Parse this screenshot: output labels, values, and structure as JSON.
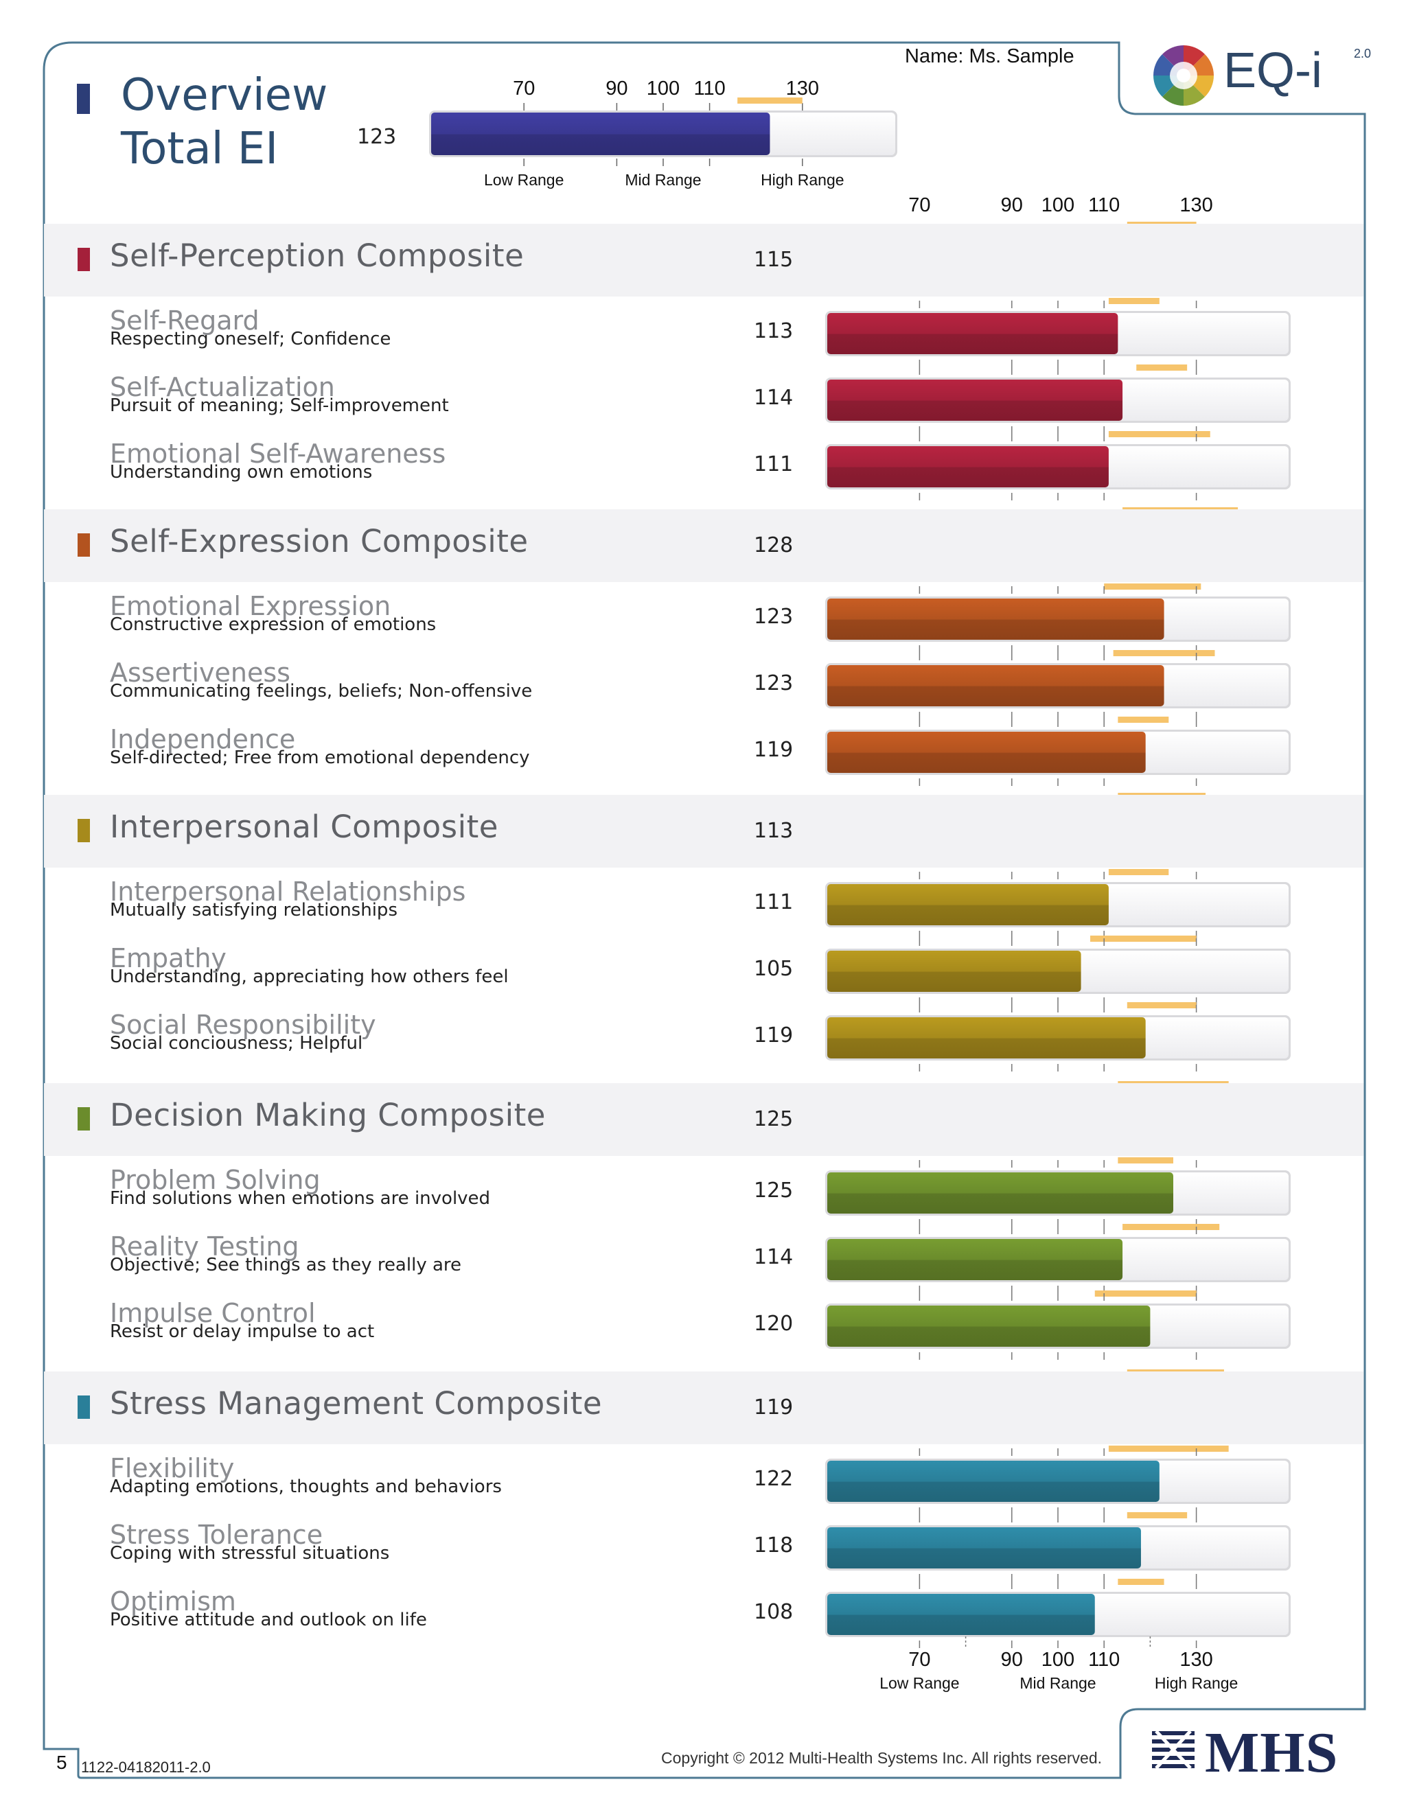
{
  "header": {
    "title": "Overview",
    "subtitle": "Total EI",
    "name_label": "Name: Ms. Sample",
    "logo": "EQ-i",
    "logo_version": "2.0"
  },
  "footer": {
    "page_number": "5",
    "document_code": "1122-04182011-2.0",
    "copyright": "Copyright © 2012 Multi-Health Systems Inc. All rights reserved.",
    "publisher_logo": "MHS"
  },
  "colors": {
    "total": "#3a3892",
    "self_perception": "#a4203a",
    "self_expression": "#b3531f",
    "interpersonal": "#a68a1c",
    "decision_making": "#6b8c2c",
    "stress_management": "#2a7f99",
    "range_band": "#f6c46c"
  },
  "chart_data": {
    "type": "bar",
    "orientation": "horizontal",
    "xlim": [
      50,
      150
    ],
    "tick_values": [
      70,
      90,
      100,
      110,
      130
    ],
    "tick_labels": [
      "70",
      "90",
      "100",
      "110",
      "130"
    ],
    "range_labels": [
      "Low Range",
      "Mid Range",
      "High Range"
    ],
    "total": {
      "label": "Total EI",
      "value": 123,
      "band": [
        116,
        130
      ]
    },
    "composites": [
      {
        "key": "self_perception",
        "name": "Self-Perception Composite",
        "value": 115,
        "band": [
          115,
          130
        ],
        "subscales": [
          {
            "name": "Self-Regard",
            "description": "Respecting oneself; Confidence",
            "value": 113,
            "band": [
              111,
              122
            ]
          },
          {
            "name": "Self-Actualization",
            "description": "Pursuit of meaning; Self-improvement",
            "value": 114,
            "band": [
              117,
              128
            ]
          },
          {
            "name": "Emotional Self-Awareness",
            "description": "Understanding own emotions",
            "value": 111,
            "band": [
              111,
              133
            ]
          }
        ]
      },
      {
        "key": "self_expression",
        "name": "Self-Expression Composite",
        "value": 128,
        "band": [
          114,
          139
        ],
        "subscales": [
          {
            "name": "Emotional Expression",
            "description": "Constructive expression of emotions",
            "value": 123,
            "band": [
              110,
              131
            ]
          },
          {
            "name": "Assertiveness",
            "description": "Communicating feelings, beliefs; Non-offensive",
            "value": 123,
            "band": [
              112,
              134
            ]
          },
          {
            "name": "Independence",
            "description": "Self-directed; Free from emotional dependency",
            "value": 119,
            "band": [
              113,
              124
            ]
          }
        ]
      },
      {
        "key": "interpersonal",
        "name": "Interpersonal Composite",
        "value": 113,
        "band": [
          113,
          132
        ],
        "subscales": [
          {
            "name": "Interpersonal Relationships",
            "description": "Mutually satisfying relationships",
            "value": 111,
            "band": [
              111,
              124
            ]
          },
          {
            "name": "Empathy",
            "description": "Understanding, appreciating how others feel",
            "value": 105,
            "band": [
              107,
              130
            ]
          },
          {
            "name": "Social Responsibility",
            "description": "Social conciousness; Helpful",
            "value": 119,
            "band": [
              115,
              130
            ]
          }
        ]
      },
      {
        "key": "decision_making",
        "name": "Decision Making Composite",
        "value": 125,
        "band": [
          113,
          137
        ],
        "subscales": [
          {
            "name": "Problem Solving",
            "description": "Find solutions when emotions are involved",
            "value": 125,
            "band": [
              113,
              125
            ]
          },
          {
            "name": "Reality Testing",
            "description": "Objective; See things as they really are",
            "value": 114,
            "band": [
              114,
              135
            ]
          },
          {
            "name": "Impulse Control",
            "description": "Resist or delay impulse to act",
            "value": 120,
            "band": [
              108,
              130
            ]
          }
        ]
      },
      {
        "key": "stress_management",
        "name": "Stress Management Composite",
        "value": 119,
        "band": [
          115,
          136
        ],
        "subscales": [
          {
            "name": "Flexibility",
            "description": "Adapting emotions, thoughts and behaviors",
            "value": 122,
            "band": [
              111,
              137
            ]
          },
          {
            "name": "Stress Tolerance",
            "description": "Coping with stressful situations",
            "value": 118,
            "band": [
              115,
              128
            ]
          },
          {
            "name": "Optimism",
            "description": "Positive attitude and outlook on life",
            "value": 108,
            "band": [
              113,
              123
            ]
          }
        ]
      }
    ]
  }
}
